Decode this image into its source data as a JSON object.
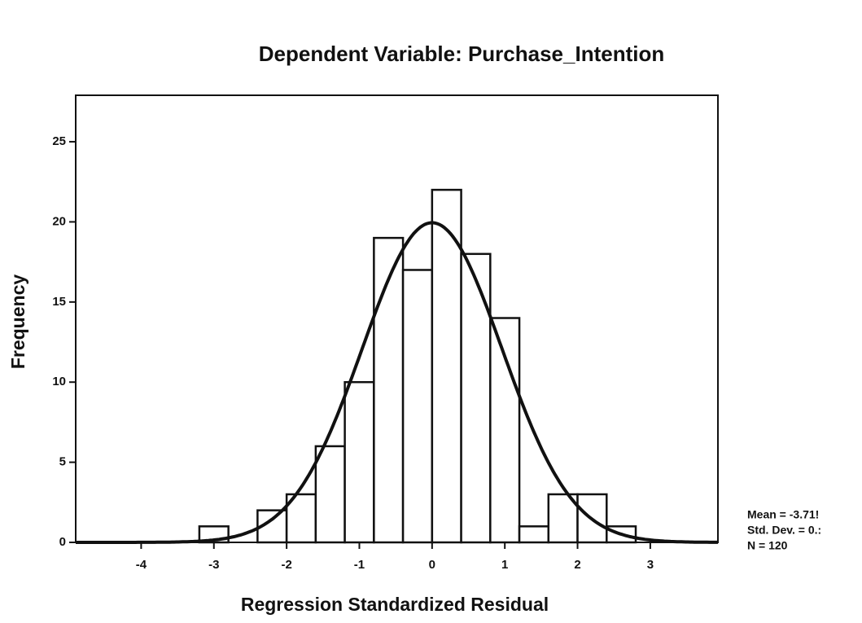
{
  "chart_data": {
    "type": "histogram",
    "title": "Dependent Variable: Purchase_Intention",
    "x_label": "Regression Standardized Residual",
    "y_label": "Frequency",
    "bins": [
      -3.2,
      -2.8,
      -2.4,
      -2.0,
      -1.6,
      -1.2,
      -0.8,
      -0.4,
      0,
      0.4,
      0.8,
      1.2,
      1.6,
      2.0,
      2.4,
      2.8
    ],
    "values": [
      1,
      0,
      2,
      3,
      6,
      10,
      19,
      17,
      22,
      18,
      14,
      1,
      3,
      3,
      1
    ],
    "color": "#ffffff",
    "xlim": [
      -4.9,
      3.93
    ],
    "ylim": [
      0,
      27.9
    ],
    "xticks": [
      -4,
      -3,
      -2,
      -1,
      0,
      1,
      2,
      3
    ],
    "yticks": [
      0,
      5,
      10,
      15,
      20,
      25
    ],
    "normal_curve": {
      "mean": 0,
      "sd": 0.96
    },
    "stats": [
      "Mean = -3.71!",
      "Std. Dev. = 0.:",
      "N = 120"
    ]
  }
}
